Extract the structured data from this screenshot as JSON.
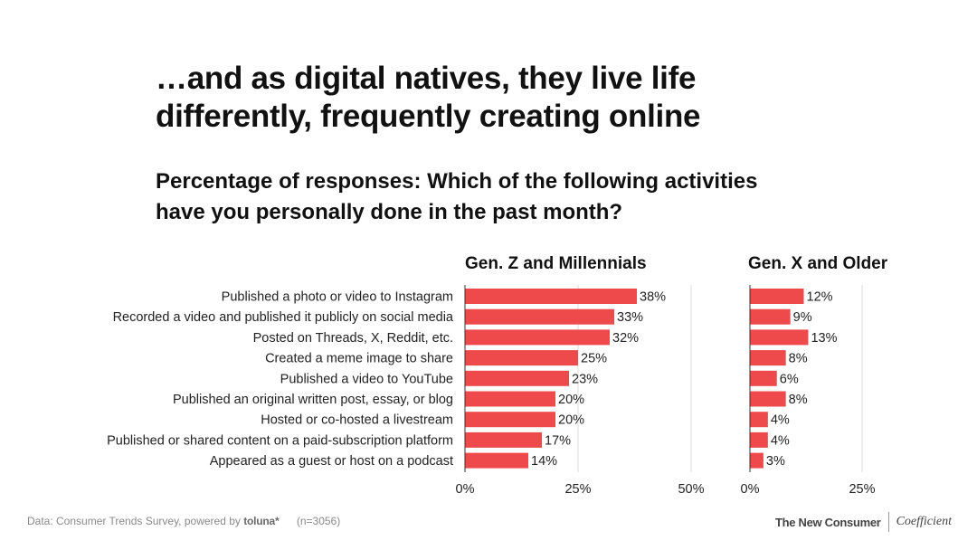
{
  "title": "…and as digital natives, they live life\ndifferently, frequently creating online",
  "subtitle": "Percentage of responses: Which of the following activities\nhave you personally done in the past month?",
  "footer": {
    "source_prefix": "Data: Consumer Trends Survey, powered by",
    "source_brand": "toluna*",
    "sample": "(n=3056)"
  },
  "logos": {
    "left": "The New Consumer",
    "right": "Coefficient"
  },
  "colors": {
    "bar": "#ef4a4b",
    "grid": "#dddddd",
    "axis": "#333333"
  },
  "chart_data": {
    "type": "bar",
    "orientation": "horizontal",
    "categories": [
      "Published a photo or video to Instagram",
      "Recorded a video and published it publicly on social media",
      "Posted on Threads, X, Reddit, etc.",
      "Created a meme image to share",
      "Published a video to YouTube",
      "Published an original written post, essay, or blog",
      "Hosted or co-hosted a livestream",
      "Published or shared content on a paid-subscription platform",
      "Appeared as a guest or host on a podcast"
    ],
    "series": [
      {
        "name": "Gen. Z and Millennials",
        "values": [
          38,
          33,
          32,
          25,
          23,
          20,
          20,
          17,
          14
        ],
        "labels": [
          "38%",
          "33%",
          "32%",
          "25%",
          "23%",
          "20%",
          "20%",
          "17%",
          "14%"
        ],
        "xlim": [
          0,
          50
        ],
        "ticks": [
          0,
          25,
          50
        ],
        "tick_labels": [
          "0%",
          "25%",
          "50%"
        ]
      },
      {
        "name": "Gen. X and Older",
        "values": [
          12,
          9,
          13,
          8,
          6,
          8,
          4,
          4,
          3
        ],
        "labels": [
          "12%",
          "9%",
          "13%",
          "8%",
          "6%",
          "8%",
          "4%",
          "4%",
          "3%"
        ],
        "xlim": [
          0,
          25
        ],
        "ticks": [
          0,
          25
        ],
        "tick_labels": [
          "0%",
          "25%"
        ]
      }
    ],
    "unit": "%"
  }
}
